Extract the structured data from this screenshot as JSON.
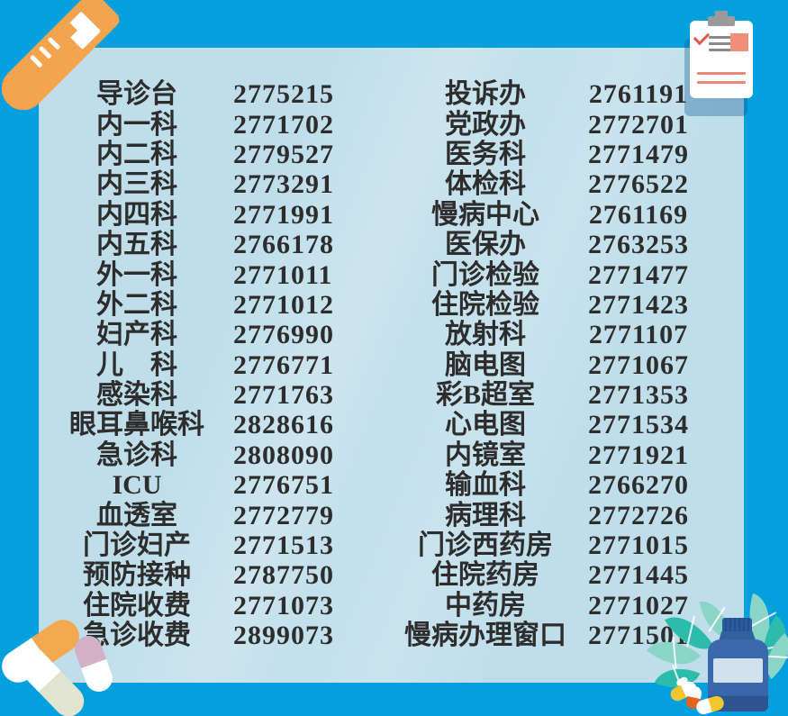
{
  "page": {
    "background_color": "#04a0de",
    "panel_color": "#bfdeea",
    "text_color": "#2d2d2d"
  },
  "directory": {
    "left": [
      {
        "label": "导诊台",
        "number": "2775215"
      },
      {
        "label": "内一科",
        "number": "2771702"
      },
      {
        "label": "内二科",
        "number": "2779527"
      },
      {
        "label": "内三科",
        "number": "2773291"
      },
      {
        "label": "内四科",
        "number": "2771991"
      },
      {
        "label": "内五科",
        "number": "2766178"
      },
      {
        "label": "外一科",
        "number": "2771011"
      },
      {
        "label": "外二科",
        "number": "2771012"
      },
      {
        "label": "妇产科",
        "number": "2776990"
      },
      {
        "label": "儿　科",
        "number": "2776771"
      },
      {
        "label": "感染科",
        "number": "2771763"
      },
      {
        "label": "眼耳鼻喉科",
        "number": "2828616"
      },
      {
        "label": "急诊科",
        "number": "2808090"
      },
      {
        "label": "ICU",
        "number": "2776751"
      },
      {
        "label": "血透室",
        "number": "2772779"
      },
      {
        "label": "门诊妇产",
        "number": "2771513"
      },
      {
        "label": "预防接种",
        "number": "2787750"
      },
      {
        "label": "住院收费",
        "number": "2771073"
      },
      {
        "label": "急诊收费",
        "number": "2899073"
      }
    ],
    "right": [
      {
        "label": "投诉办",
        "number": "2761191"
      },
      {
        "label": "党政办",
        "number": "2772701"
      },
      {
        "label": "医务科",
        "number": "2771479"
      },
      {
        "label": "体检科",
        "number": "2776522"
      },
      {
        "label": "慢病中心",
        "number": "2761169"
      },
      {
        "label": "医保办",
        "number": "2763253"
      },
      {
        "label": "门诊检验",
        "number": "2771477"
      },
      {
        "label": "住院检验",
        "number": "2771423"
      },
      {
        "label": "放射科",
        "number": "2771107"
      },
      {
        "label": "脑电图",
        "number": "2771067"
      },
      {
        "label": "彩B超室",
        "number": "2771353"
      },
      {
        "label": "心电图",
        "number": "2771534"
      },
      {
        "label": "内镜室",
        "number": "2771921"
      },
      {
        "label": "输血科",
        "number": "2766270"
      },
      {
        "label": "病理科",
        "number": "2772726"
      },
      {
        "label": "门诊西药房",
        "number": "2771015"
      },
      {
        "label": "住院药房",
        "number": "2771445"
      },
      {
        "label": "中药房",
        "number": "2771027"
      },
      {
        "label": "慢病办理窗口",
        "number": "2771501"
      }
    ]
  },
  "decorations": {
    "top_left_icon": "test-tube-icon",
    "top_right_icon": "clipboard-icon",
    "bottom_left_icon": "capsule-pills-icon",
    "bottom_right_icon": "medicine-bottle-leaves-icon",
    "tube_orange": "#f3a44f",
    "clipboard_accent": "#ef8f79",
    "clipboard_check_red": "#e0584a",
    "bottle_blue": "#3a67ac",
    "leaf_teal_dark": "#2dbcab",
    "leaf_teal_light": "#8ad5c8",
    "capsule_orange": "#f2a94f",
    "capsule_pink": "#d2b0c7",
    "capsule_sage": "#e0e4d0",
    "pill_yellow": "#f1c62e"
  }
}
